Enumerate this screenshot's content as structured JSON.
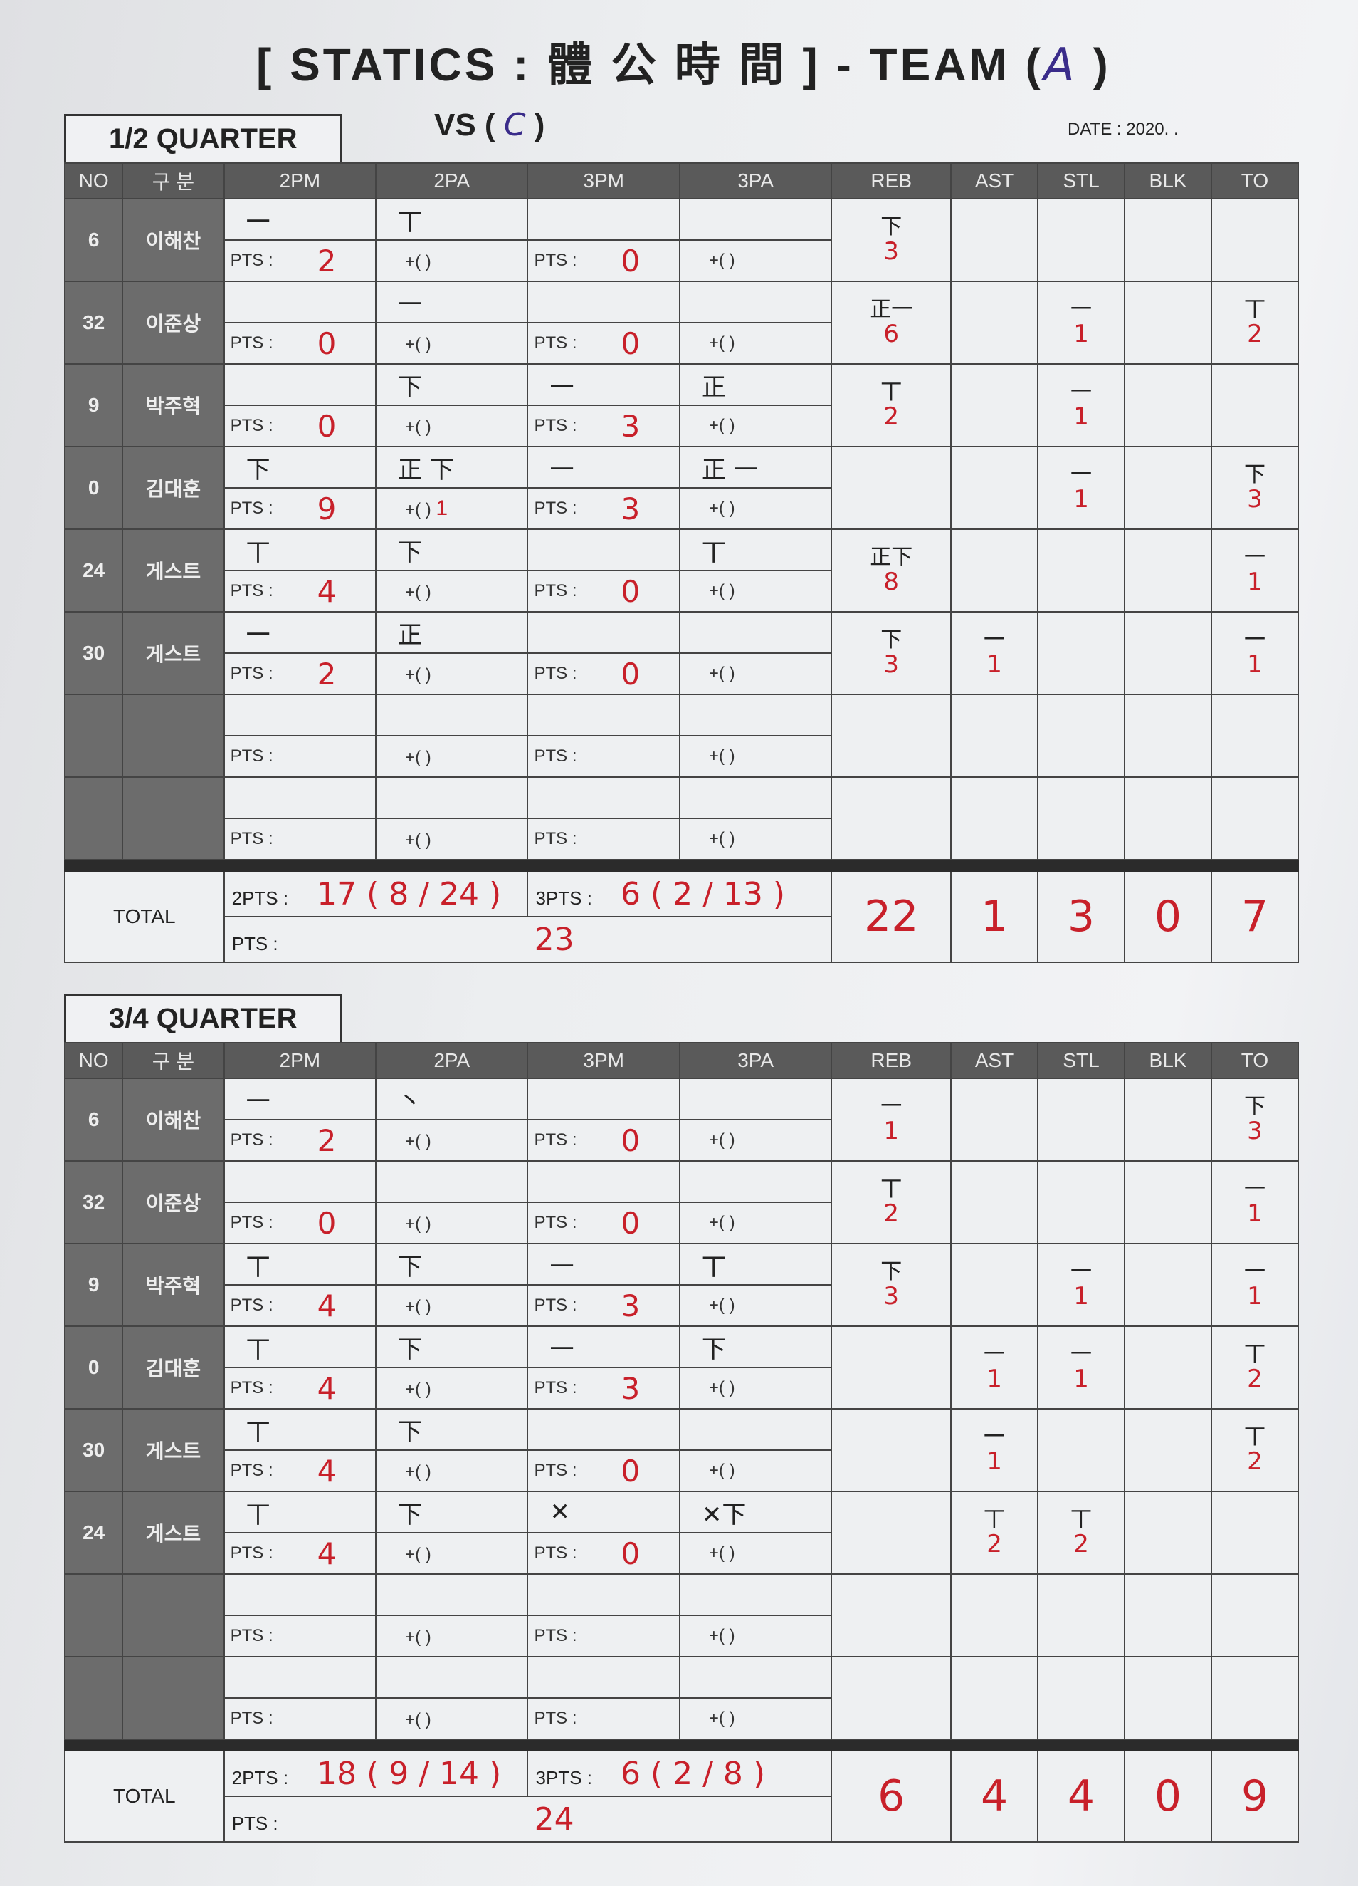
{
  "header": {
    "title_prefix": "[ STATICS : 體 公 時 間 ] - TEAM (",
    "team": "A",
    "title_suffix": ")",
    "vs_label": "VS (",
    "vs_team": "C",
    "vs_suffix": ")",
    "date_label": "DATE : 2020.   ."
  },
  "columns": [
    "NO",
    "구 분",
    "2PM",
    "2PA",
    "3PM",
    "3PA",
    "REB",
    "AST",
    "STL",
    "BLK",
    "TO"
  ],
  "labels": {
    "pts": "PTS :",
    "plus": "+(      )",
    "total": "TOTAL",
    "two_pts": "2PTS :",
    "three_pts": "3PTS :",
    "pts_total": "PTS :"
  },
  "colors": {
    "ink_red": "#c8202a",
    "ink_blue": "#3a2c8a",
    "header_gray": "#5a5a5a"
  },
  "quarters": [
    {
      "label": "1/2 QUARTER",
      "players": [
        {
          "no": "6",
          "name": "이해찬",
          "m2": "一",
          "a2": "丅",
          "m3": "",
          "a3": "",
          "pts2": "2",
          "plus2": "",
          "pts3": "0",
          "reb_t": "下",
          "reb": "3",
          "ast_t": "",
          "ast": "",
          "stl_t": "",
          "stl": "",
          "blk": "",
          "to_t": "",
          "to": ""
        },
        {
          "no": "32",
          "name": "이준상",
          "m2": "",
          "a2": "一",
          "m3": "",
          "a3": "",
          "pts2": "0",
          "plus2": "",
          "pts3": "0",
          "reb_t": "正一",
          "reb": "6",
          "ast_t": "",
          "ast": "",
          "stl_t": "一",
          "stl": "1",
          "blk": "",
          "to_t": "丅",
          "to": "2"
        },
        {
          "no": "9",
          "name": "박주혁",
          "m2": "",
          "a2": "下",
          "m3": "一",
          "a3": "正",
          "pts2": "0",
          "plus2": "",
          "pts3": "3",
          "reb_t": "丅",
          "reb": "2",
          "ast_t": "",
          "ast": "",
          "stl_t": "一",
          "stl": "1",
          "blk": "",
          "to_t": "",
          "to": ""
        },
        {
          "no": "0",
          "name": "김대훈",
          "m2": "下",
          "a2": "正 下",
          "m3": "一",
          "a3": "正 一",
          "pts2": "9",
          "plus2": "1",
          "pts3": "3",
          "reb_t": "",
          "reb": "",
          "ast_t": "",
          "ast": "",
          "stl_t": "一",
          "stl": "1",
          "blk": "",
          "to_t": "下",
          "to": "3"
        },
        {
          "no": "24",
          "name": "게스트",
          "m2": "丅",
          "a2": "下",
          "m3": "",
          "a3": "丅",
          "pts2": "4",
          "plus2": "",
          "pts3": "0",
          "reb_t": "正下",
          "reb": "8",
          "ast_t": "",
          "ast": "",
          "stl_t": "",
          "stl": "",
          "blk": "",
          "to_t": "一",
          "to": "1"
        },
        {
          "no": "30",
          "name": "게스트",
          "m2": "一",
          "a2": "正",
          "m3": "",
          "a3": "",
          "pts2": "2",
          "plus2": "",
          "pts3": "0",
          "reb_t": "下",
          "reb": "3",
          "ast_t": "一",
          "ast": "1",
          "stl_t": "",
          "stl": "",
          "blk": "",
          "to_t": "一",
          "to": "1"
        },
        {
          "no": "",
          "name": "",
          "m2": "",
          "a2": "",
          "m3": "",
          "a3": "",
          "pts2": "",
          "plus2": "",
          "pts3": "",
          "reb_t": "",
          "reb": "",
          "ast_t": "",
          "ast": "",
          "stl_t": "",
          "stl": "",
          "blk": "",
          "to_t": "",
          "to": ""
        },
        {
          "no": "",
          "name": "",
          "m2": "",
          "a2": "",
          "m3": "",
          "a3": "",
          "pts2": "",
          "plus2": "",
          "pts3": "",
          "reb_t": "",
          "reb": "",
          "ast_t": "",
          "ast": "",
          "stl_t": "",
          "stl": "",
          "blk": "",
          "to_t": "",
          "to": ""
        }
      ],
      "total": {
        "two_pts": "17 ( 8 / 24 )",
        "three_pts": "6 ( 2 / 13 )",
        "pts": "23",
        "reb": "22",
        "ast": "1",
        "stl": "3",
        "blk": "0",
        "to": "7"
      }
    },
    {
      "label": "3/4 QUARTER",
      "players": [
        {
          "no": "6",
          "name": "이해찬",
          "m2": "一",
          "a2": "丶",
          "m3": "",
          "a3": "",
          "pts2": "2",
          "plus2": "",
          "pts3": "0",
          "reb_t": "一",
          "reb": "1",
          "ast_t": "",
          "ast": "",
          "stl_t": "",
          "stl": "",
          "blk": "",
          "to_t": "下",
          "to": "3"
        },
        {
          "no": "32",
          "name": "이준상",
          "m2": "",
          "a2": "",
          "m3": "",
          "a3": "",
          "pts2": "0",
          "plus2": "",
          "pts3": "0",
          "reb_t": "丅",
          "reb": "2",
          "ast_t": "",
          "ast": "",
          "stl_t": "",
          "stl": "",
          "blk": "",
          "to_t": "一",
          "to": "1"
        },
        {
          "no": "9",
          "name": "박주혁",
          "m2": "丅",
          "a2": "下",
          "m3": "一",
          "a3": "丅",
          "pts2": "4",
          "plus2": "",
          "pts3": "3",
          "reb_t": "下",
          "reb": "3",
          "ast_t": "",
          "ast": "",
          "stl_t": "一",
          "stl": "1",
          "blk": "",
          "to_t": "一",
          "to": "1"
        },
        {
          "no": "0",
          "name": "김대훈",
          "m2": "丅",
          "a2": "下",
          "m3": "一",
          "a3": "下",
          "pts2": "4",
          "plus2": "",
          "pts3": "3",
          "reb_t": "",
          "reb": "",
          "ast_t": "一",
          "ast": "1",
          "stl_t": "一",
          "stl": "1",
          "blk": "",
          "to_t": "丅",
          "to": "2"
        },
        {
          "no": "30",
          "name": "게스트",
          "m2": "丅",
          "a2": "下",
          "m3": "",
          "a3": "",
          "pts2": "4",
          "plus2": "",
          "pts3": "0",
          "reb_t": "",
          "reb": "",
          "ast_t": "一",
          "ast": "1",
          "stl_t": "",
          "stl": "",
          "blk": "",
          "to_t": "丅",
          "to": "2"
        },
        {
          "no": "24",
          "name": "게스트",
          "m2": "丅",
          "a2": "下",
          "m3": "✕",
          "a3": "✕下",
          "pts2": "4",
          "plus2": "",
          "pts3": "0",
          "reb_t": "",
          "reb": "",
          "ast_t": "丅",
          "ast": "2",
          "stl_t": "丅",
          "stl": "2",
          "blk": "",
          "to_t": "",
          "to": ""
        },
        {
          "no": "",
          "name": "",
          "m2": "",
          "a2": "",
          "m3": "",
          "a3": "",
          "pts2": "",
          "plus2": "",
          "pts3": "",
          "reb_t": "",
          "reb": "",
          "ast_t": "",
          "ast": "",
          "stl_t": "",
          "stl": "",
          "blk": "",
          "to_t": "",
          "to": ""
        },
        {
          "no": "",
          "name": "",
          "m2": "",
          "a2": "",
          "m3": "",
          "a3": "",
          "pts2": "",
          "plus2": "",
          "pts3": "",
          "reb_t": "",
          "reb": "",
          "ast_t": "",
          "ast": "",
          "stl_t": "",
          "stl": "",
          "blk": "",
          "to_t": "",
          "to": ""
        }
      ],
      "total": {
        "two_pts": "18 ( 9 / 14 )",
        "three_pts": "6 ( 2 / 8 )",
        "pts": "24",
        "reb": "6",
        "ast": "4",
        "stl": "4",
        "blk": "0",
        "to": "9"
      }
    }
  ]
}
